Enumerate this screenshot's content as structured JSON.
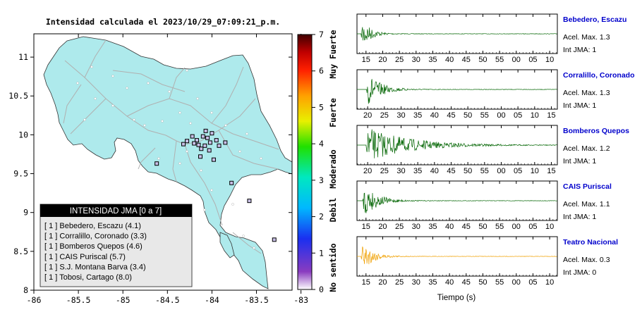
{
  "map": {
    "title": "Intensidad calculada el 2023/10/29_07:09:21_p.m.",
    "x_ticks": [
      "-86",
      "-85.5",
      "-85",
      "-84.5",
      "-84",
      "-83.5",
      "-83"
    ],
    "y_ticks": [
      "11",
      "10.5",
      "10",
      "9.5",
      "9",
      "8.5",
      "8"
    ],
    "xlim": [
      -86,
      -83.1
    ],
    "ylim": [
      8,
      11.3
    ],
    "colors": {
      "land": "#aeeaec",
      "ocean": "#ffffff",
      "roads": "#b0b0b0",
      "coast": "#333333"
    },
    "stations": [
      {
        "lon": -84.22,
        "lat": 9.98
      },
      {
        "lon": -84.17,
        "lat": 9.93
      },
      {
        "lon": -84.1,
        "lat": 9.98
      },
      {
        "lon": -84.05,
        "lat": 9.96
      },
      {
        "lon": -84.02,
        "lat": 9.9
      },
      {
        "lon": -84.08,
        "lat": 9.86
      },
      {
        "lon": -84.15,
        "lat": 9.87
      },
      {
        "lon": -84.2,
        "lat": 9.89
      },
      {
        "lon": -84.28,
        "lat": 9.92
      },
      {
        "lon": -84.32,
        "lat": 9.88
      },
      {
        "lon": -84.12,
        "lat": 9.82
      },
      {
        "lon": -84.03,
        "lat": 9.8
      },
      {
        "lon": -83.95,
        "lat": 9.93
      },
      {
        "lon": -83.92,
        "lat": 9.86
      },
      {
        "lon": -83.85,
        "lat": 9.9
      },
      {
        "lon": -84.0,
        "lat": 10.02
      },
      {
        "lon": -84.07,
        "lat": 10.05
      },
      {
        "lon": -84.13,
        "lat": 9.72
      },
      {
        "lon": -83.98,
        "lat": 9.68
      },
      {
        "lon": -84.62,
        "lat": 9.63
      },
      {
        "lon": -83.78,
        "lat": 9.38
      },
      {
        "lon": -83.58,
        "lat": 9.15
      },
      {
        "lon": -83.3,
        "lat": 8.65
      },
      {
        "lon": -82.88,
        "lat": 8.93
      }
    ],
    "legend": {
      "title": "INTENSIDAD JMA [0 a 7]",
      "items": [
        "[ 1 ]  Bebedero, Escazu (4.1)",
        "[ 1 ]  Corralillo, Coronado (3.3)",
        "[ 1 ]  Bomberos Quepos (4.6)",
        "[ 1 ]  CAIS Puriscal (5.7)",
        "[ 1 ]  S.J. Montana Barva (3.4)",
        "[ 1 ]  Tobosi, Cartago (8.0)"
      ]
    }
  },
  "colorbar": {
    "ticks": [
      "0",
      "1",
      "2",
      "3",
      "4",
      "5",
      "6",
      "7"
    ],
    "range": [
      0,
      7
    ],
    "labels": [
      "No sentido",
      "Debil",
      "Moderado",
      "Fuerte",
      "Muy Fuerte"
    ],
    "colors": [
      "#ffffff",
      "#8a3cc0",
      "#1a2ff0",
      "#00b8ff",
      "#00e8c0",
      "#20e000",
      "#e8f000",
      "#ffa000",
      "#ff2000",
      "#c00000",
      "#400000"
    ]
  },
  "waveforms": [
    {
      "station": "Bebedero, Escazu",
      "accel": "Acel. Max. 1.3",
      "int": "Int JMA: 1",
      "color": "#006400",
      "ticks": [
        "15",
        "20",
        "25",
        "30",
        "35",
        "40",
        "45",
        "50",
        "55",
        "00",
        "05",
        "10"
      ],
      "first_sec": 15,
      "xmin_sec": 12.3,
      "onset_sec": 13.5,
      "decay": 2.5
    },
    {
      "station": "Corralillo, Coronado",
      "accel": "Acel. Max. 1.3",
      "int": "Int JMA: 1",
      "color": "#006400",
      "ticks": [
        "20",
        "25",
        "30",
        "35",
        "40",
        "45",
        "50",
        "55",
        "00",
        "05",
        "10",
        "15"
      ],
      "first_sec": 20,
      "xmin_sec": 16.8,
      "onset_sec": 19.5,
      "decay": 4
    },
    {
      "station": "Bomberos Quepos",
      "accel": "Acel. Max. 1.2",
      "int": "Int JMA: 1",
      "color": "#006400",
      "ticks": [
        "20",
        "25",
        "30",
        "35",
        "40",
        "45",
        "50",
        "55",
        "00",
        "05",
        "10",
        "15"
      ],
      "first_sec": 20,
      "xmin_sec": 16.8,
      "onset_sec": 19.5,
      "decay": 12
    },
    {
      "station": "CAIS Puriscal",
      "accel": "Acel. Max. 1.1",
      "int": "Int JMA: 1",
      "color": "#006400",
      "ticks": [
        "15",
        "20",
        "25",
        "30",
        "35",
        "40",
        "45",
        "50",
        "55",
        "00",
        "05",
        "10"
      ],
      "first_sec": 15,
      "xmin_sec": 12.3,
      "onset_sec": 14,
      "decay": 4
    },
    {
      "station": "Teatro Nacional",
      "accel": "Acel. Max. 0.3",
      "int": "Int JMA: 0",
      "color": "#f0a000",
      "ticks": [
        "15",
        "20",
        "25",
        "30",
        "35",
        "40",
        "45",
        "50",
        "55",
        "00",
        "05",
        "10"
      ],
      "first_sec": 15,
      "xmin_sec": 12.3,
      "onset_sec": 13.5,
      "decay": 3
    }
  ],
  "waveform_xlabel": "Tiempo (s)",
  "station_name_color": "#0000cc",
  "chart_data": [
    {
      "type": "scatter",
      "title": "Intensidad calculada el 2023/10/29_07:09:21_p.m.",
      "xlim": [
        -86,
        -83.1
      ],
      "ylim": [
        8,
        11.3
      ],
      "grid": false,
      "legend_position": "bottom-left"
    },
    {
      "type": "heatmap",
      "range": [
        0,
        7
      ],
      "labels": [
        "No sentido",
        "Debil",
        "Moderado",
        "Fuerte",
        "Muy Fuerte"
      ]
    },
    {
      "type": "line",
      "series": [
        {
          "name": "Bebedero, Escazu",
          "peak": 1.3
        },
        {
          "name": "Corralillo, Coronado",
          "peak": 1.3
        },
        {
          "name": "Bomberos Quepos",
          "peak": 1.2
        },
        {
          "name": "CAIS Puriscal",
          "peak": 1.1
        },
        {
          "name": "Teatro Nacional",
          "peak": 0.3
        }
      ],
      "xlabel": "Tiempo (s)"
    }
  ]
}
